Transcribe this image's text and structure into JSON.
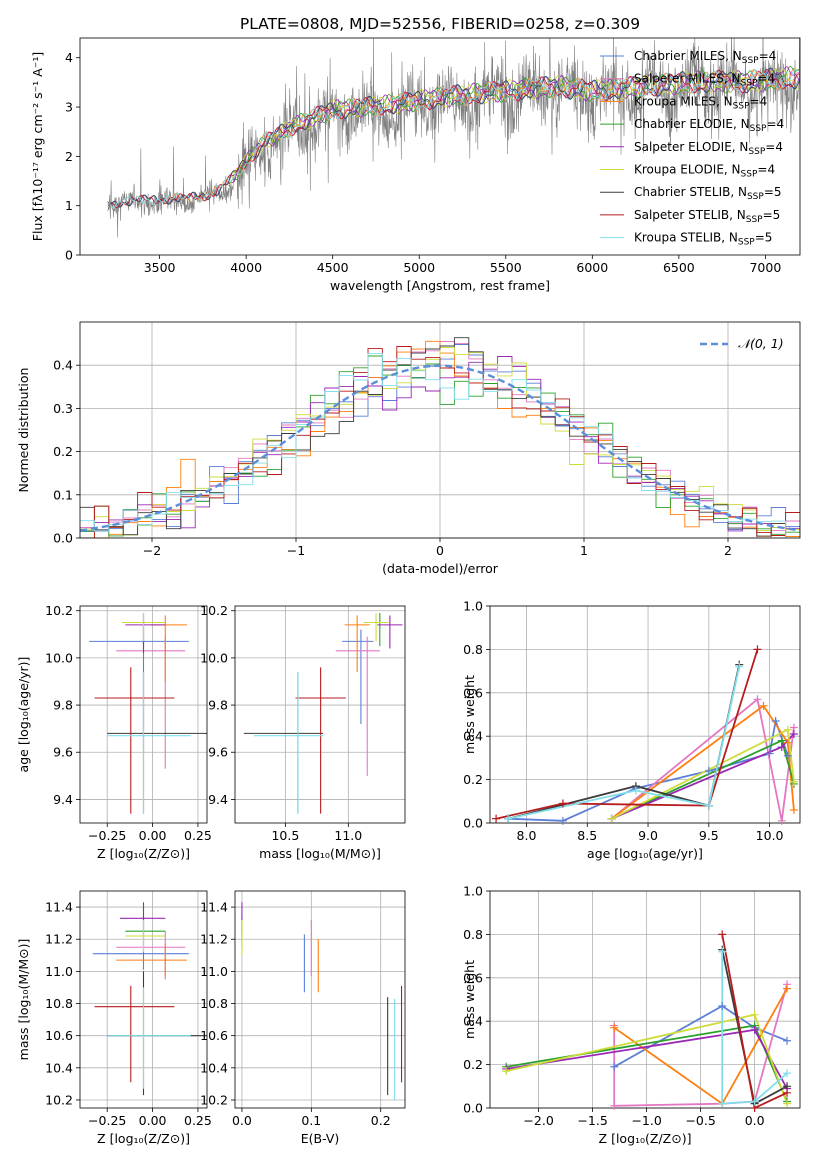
{
  "title": "PLATE=0808, MJD=52556, FIBERID=0258, z=0.309",
  "colors": {
    "Chabrier MILES": "#5b7fd9",
    "Salpeter MILES": "#e377c2",
    "Kroupa MILES": "#ff7f0e",
    "Chabrier ELODIE": "#2ca02c",
    "Salpeter ELODIE": "#9a28b5",
    "Kroupa ELODIE": "#cddc39",
    "Chabrier STELIB": "#3c3c3c",
    "Salpeter STELIB": "#b71c1c",
    "Kroupa STELIB": "#80deea",
    "normal": "#5b8fd9",
    "data": "#808080",
    "grid": "#b0b0b0"
  },
  "chart_data": [
    {
      "id": "spectrum",
      "type": "line",
      "title": "PLATE=0808, MJD=52556, FIBERID=0258, z=0.309",
      "xlabel": "wavelength [Angstrom, rest frame]",
      "ylabel": "Flux [fλ10⁻¹⁷ erg cm⁻² s⁻¹ A⁻¹]",
      "xlim": [
        3040,
        7200
      ],
      "ylim": [
        0,
        4.4
      ],
      "xticks": [
        3500,
        4000,
        4500,
        5000,
        5500,
        6000,
        6500,
        7000
      ],
      "yticks": [
        0,
        1,
        2,
        3,
        4
      ],
      "grid": false,
      "legend_position": "top-right",
      "data_range": [
        3200,
        7200
      ],
      "continuum_knots": {
        "x": [
          3200,
          3500,
          3650,
          3800,
          3900,
          4000,
          4100,
          4300,
          4500,
          4800,
          5000,
          5200,
          5500,
          5800,
          6000,
          6300,
          6600,
          6900,
          7200
        ],
        "y": [
          1.1,
          1.2,
          1.2,
          1.3,
          1.55,
          2.0,
          2.4,
          2.8,
          3.1,
          3.2,
          3.3,
          3.4,
          3.5,
          3.6,
          3.5,
          3.6,
          3.7,
          3.7,
          3.8
        ]
      },
      "series": [
        {
          "name": "Chabrier MILES, Nₛₛₚ=4",
          "label_main": "Chabrier MILES, N",
          "label_sub": "SSP",
          "label_end": "=4"
        },
        {
          "name": "Salpeter MILES, Nₛₛₚ=4",
          "label_main": "Salpeter MILES, N",
          "label_sub": "SSP",
          "label_end": "=4"
        },
        {
          "name": "Kroupa MILES, Nₛₛₚ=4",
          "label_main": "Kroupa MILES, N",
          "label_sub": "SSP",
          "label_end": "=4"
        },
        {
          "name": "Chabrier ELODIE, Nₛₛₚ=4",
          "label_main": "Chabrier ELODIE, N",
          "label_sub": "SSP",
          "label_end": "=4"
        },
        {
          "name": "Salpeter ELODIE, Nₛₛₚ=4",
          "label_main": "Salpeter ELODIE, N",
          "label_sub": "SSP",
          "label_end": "=4"
        },
        {
          "name": "Kroupa ELODIE, Nₛₛₚ=4",
          "label_main": "Kroupa ELODIE, N",
          "label_sub": "SSP",
          "label_end": "=4"
        },
        {
          "name": "Chabrier STELIB, Nₛₛₚ=5",
          "label_main": "Chabrier STELIB, N",
          "label_sub": "SSP",
          "label_end": "=5"
        },
        {
          "name": "Salpeter STELIB, Nₛₛₚ=5",
          "label_main": "Salpeter STELIB, N",
          "label_sub": "SSP",
          "label_end": "=5"
        },
        {
          "name": "Kroupa STELIB, Nₛₛₚ=5",
          "label_main": "Kroupa STELIB, N",
          "label_sub": "SSP",
          "label_end": "=5"
        }
      ]
    },
    {
      "id": "residuals",
      "type": "line",
      "xlabel": "(data-model)/error",
      "ylabel": "Normed distribution",
      "xlim": [
        -2.5,
        2.5
      ],
      "ylim": [
        0,
        0.5
      ],
      "xticks": [
        -2,
        -1,
        0,
        1,
        2
      ],
      "yticks": [
        0.0,
        0.1,
        0.2,
        0.3,
        0.4
      ],
      "grid": true,
      "legend_position": "top-right",
      "normal_label": "𝒩(0, 1)",
      "bins": [
        -2.5,
        2.5,
        50
      ]
    },
    {
      "id": "age-vs-Z",
      "type": "scatter",
      "xlabel": "Z [log₁₀(Z/Z⊙)]",
      "ylabel": "age [log₁₀(age/yr)]",
      "xlim": [
        -0.4,
        0.3
      ],
      "ylim": [
        9.3,
        10.22
      ],
      "xticks": [
        -0.25,
        0.0,
        0.25
      ],
      "yticks": [
        9.4,
        9.6,
        9.8,
        10.0,
        10.2
      ],
      "grid": true,
      "points": [
        {
          "model": "Chabrier MILES",
          "x": -0.05,
          "xerr": [
            0.3,
            0.25
          ],
          "y": 10.07,
          "yerr": [
            0.45,
            0.05
          ]
        },
        {
          "model": "Salpeter MILES",
          "x": 0.07,
          "xerr": [
            0.27,
            0.11
          ],
          "y": 10.03,
          "yerr": [
            0.5,
            0.06
          ]
        },
        {
          "model": "Kroupa MILES",
          "x": 0.07,
          "xerr": [
            0.08,
            0.12
          ],
          "y": 10.14,
          "yerr": [
            0.24,
            0.04
          ]
        },
        {
          "model": "Chabrier ELODIE",
          "x": -0.05,
          "xerr": [
            0.1,
            0.12
          ],
          "y": 10.15,
          "yerr": [
            0.1,
            0.04
          ]
        },
        {
          "model": "Salpeter ELODIE",
          "x": -0.05,
          "xerr": [
            0.1,
            0.12
          ],
          "y": 10.14,
          "yerr": [
            0.12,
            0.04
          ]
        },
        {
          "model": "Kroupa ELODIE",
          "x": -0.05,
          "xerr": [
            0.12,
            0.12
          ],
          "y": 10.15,
          "yerr": [
            0.08,
            0.04
          ]
        },
        {
          "model": "Chabrier STELIB",
          "x": -0.05,
          "xerr": [
            0.2,
            0.35
          ],
          "y": 9.68,
          "yerr": [
            0.34,
            0.26
          ]
        },
        {
          "model": "Salpeter STELIB",
          "x": -0.12,
          "xerr": [
            0.2,
            0.24
          ],
          "y": 9.83,
          "yerr": [
            0.49,
            0.13
          ]
        },
        {
          "model": "Kroupa STELIB",
          "x": -0.05,
          "xerr": [
            0.2,
            0.26
          ],
          "y": 9.67,
          "yerr": [
            0.33,
            0.27
          ]
        }
      ]
    },
    {
      "id": "age-vs-mass",
      "type": "scatter",
      "xlabel": "mass [log₁₀(M/M⊙)]",
      "ylabel": "",
      "xlim": [
        10.1,
        11.45
      ],
      "ylim": [
        9.3,
        10.22
      ],
      "xticks": [
        10.5,
        11.0
      ],
      "yticks": [
        9.4,
        9.6,
        9.8,
        10.0,
        10.2
      ],
      "grid": true,
      "points": [
        {
          "model": "Chabrier MILES",
          "x": 11.1,
          "xerr": [
            0.15,
            0.1
          ],
          "y": 10.07,
          "yerr": [
            0.35,
            0.05
          ]
        },
        {
          "model": "Salpeter MILES",
          "x": 11.15,
          "xerr": [
            0.25,
            0.1
          ],
          "y": 10.03,
          "yerr": [
            0.53,
            0.06
          ]
        },
        {
          "model": "Kroupa MILES",
          "x": 11.07,
          "xerr": [
            0.1,
            0.1
          ],
          "y": 10.14,
          "yerr": [
            0.2,
            0.04
          ]
        },
        {
          "model": "Chabrier ELODIE",
          "x": 11.25,
          "xerr": [
            0.1,
            0.05
          ],
          "y": 10.15,
          "yerr": [
            0.1,
            0.04
          ]
        },
        {
          "model": "Salpeter ELODIE",
          "x": 11.33,
          "xerr": [
            0.1,
            0.1
          ],
          "y": 10.14,
          "yerr": [
            0.1,
            0.04
          ]
        },
        {
          "model": "Kroupa ELODIE",
          "x": 11.22,
          "xerr": [
            0.1,
            0.1
          ],
          "y": 10.15,
          "yerr": [
            0.08,
            0.04
          ]
        },
        {
          "model": "Chabrier STELIB",
          "x": 10.6,
          "xerr": [
            0.43,
            0.2
          ],
          "y": 9.68,
          "yerr": [
            0.34,
            0.26
          ]
        },
        {
          "model": "Salpeter STELIB",
          "x": 10.78,
          "xerr": [
            0.2,
            0.2
          ],
          "y": 9.83,
          "yerr": [
            0.49,
            0.13
          ]
        },
        {
          "model": "Kroupa STELIB",
          "x": 10.6,
          "xerr": [
            0.35,
            0.2
          ],
          "y": 9.67,
          "yerr": [
            0.33,
            0.27
          ]
        }
      ]
    },
    {
      "id": "mass-weight-vs-age",
      "type": "line",
      "xlabel": "age [log₁₀(age/yr)]",
      "ylabel": "mass weight",
      "xlim": [
        7.7,
        10.25
      ],
      "ylim": [
        0.0,
        1.0
      ],
      "xticks": [
        8.0,
        8.5,
        9.0,
        9.5,
        10.0
      ],
      "yticks": [
        0.0,
        0.2,
        0.4,
        0.6,
        0.8,
        1.0
      ],
      "grid": true,
      "series": [
        {
          "model": "Chabrier MILES",
          "x": [
            7.85,
            8.3,
            8.9,
            9.5,
            10.0,
            10.05,
            10.15
          ],
          "y": [
            0.02,
            0.01,
            0.16,
            0.24,
            0.32,
            0.47,
            0.31
          ]
        },
        {
          "model": "Salpeter MILES",
          "x": [
            8.7,
            9.9,
            10.1,
            10.2
          ],
          "y": [
            0.02,
            0.57,
            0.01,
            0.44
          ]
        },
        {
          "model": "Kroupa MILES",
          "x": [
            8.7,
            9.95,
            10.15,
            10.2
          ],
          "y": [
            0.02,
            0.54,
            0.37,
            0.06
          ]
        },
        {
          "model": "Chabrier ELODIE",
          "x": [
            8.7,
            10.1,
            10.2
          ],
          "y": [
            0.02,
            0.38,
            0.18
          ]
        },
        {
          "model": "Salpeter ELODIE",
          "x": [
            8.7,
            10.1,
            10.2
          ],
          "y": [
            0.02,
            0.35,
            0.41
          ]
        },
        {
          "model": "Kroupa ELODIE",
          "x": [
            8.7,
            10.15,
            10.2
          ],
          "y": [
            0.02,
            0.43,
            0.19
          ]
        },
        {
          "model": "Chabrier STELIB",
          "x": [
            7.85,
            8.9,
            9.5,
            9.75
          ],
          "y": [
            0.02,
            0.17,
            0.08,
            0.73
          ]
        },
        {
          "model": "Salpeter STELIB",
          "x": [
            7.75,
            8.3,
            9.5,
            9.9
          ],
          "y": [
            0.02,
            0.09,
            0.08,
            0.8
          ]
        },
        {
          "model": "Kroupa STELIB",
          "x": [
            7.85,
            8.9,
            9.5,
            9.75
          ],
          "y": [
            0.02,
            0.15,
            0.08,
            0.72
          ]
        }
      ]
    },
    {
      "id": "mass-vs-Z",
      "type": "scatter",
      "xlabel": "Z [log₁₀(Z/Z⊙)]",
      "ylabel": "mass [log₁₀(M/M⊙)]",
      "xlim": [
        -0.4,
        0.3
      ],
      "ylim": [
        10.15,
        11.5
      ],
      "xticks": [
        -0.25,
        0.0,
        0.25
      ],
      "yticks": [
        10.2,
        10.4,
        10.6,
        10.8,
        11.0,
        11.2,
        11.4
      ],
      "grid": true,
      "points": [
        {
          "model": "Chabrier MILES",
          "x": -0.05,
          "xerr": [
            0.28,
            0.25
          ],
          "y": 11.11,
          "yerr": [
            0.1,
            0.1
          ]
        },
        {
          "model": "Salpeter MILES",
          "x": 0.07,
          "xerr": [
            0.27,
            0.11
          ],
          "y": 11.15,
          "yerr": [
            0.2,
            0.1
          ]
        },
        {
          "model": "Kroupa MILES",
          "x": 0.07,
          "xerr": [
            0.27,
            0.12
          ],
          "y": 11.07,
          "yerr": [
            0.1,
            0.1
          ]
        },
        {
          "model": "Chabrier ELODIE",
          "x": -0.05,
          "xerr": [
            0.1,
            0.12
          ],
          "y": 11.25,
          "yerr": [
            0.1,
            0.1
          ]
        },
        {
          "model": "Salpeter ELODIE",
          "x": -0.05,
          "xerr": [
            0.13,
            0.12
          ],
          "y": 11.33,
          "yerr": [
            0.1,
            0.1
          ]
        },
        {
          "model": "Kroupa ELODIE",
          "x": -0.05,
          "xerr": [
            0.1,
            0.12
          ],
          "y": 11.22,
          "yerr": [
            0.1,
            0.1
          ]
        },
        {
          "model": "Chabrier STELIB",
          "x": -0.05,
          "xerr": [
            0.2,
            0.35
          ],
          "y": 10.6,
          "yerr": [
            0.37,
            0.4
          ]
        },
        {
          "model": "Salpeter STELIB",
          "x": -0.12,
          "xerr": [
            0.2,
            0.24
          ],
          "y": 10.78,
          "yerr": [
            0.47,
            0.13
          ]
        },
        {
          "model": "Kroupa STELIB",
          "x": -0.05,
          "xerr": [
            0.2,
            0.26
          ],
          "y": 10.6,
          "yerr": [
            0.33,
            0.3
          ]
        }
      ]
    },
    {
      "id": "mass-vs-EBV",
      "type": "scatter",
      "xlabel": "E(B-V)",
      "ylabel": "",
      "xlim": [
        -0.01,
        0.235
      ],
      "ylim": [
        10.15,
        11.5
      ],
      "xticks": [
        0.0,
        0.1,
        0.2
      ],
      "yticks": [
        10.2,
        10.4,
        10.6,
        10.8,
        11.0,
        11.2,
        11.4
      ],
      "grid": true,
      "points": [
        {
          "model": "Chabrier MILES",
          "x": 0.09,
          "y": 11.05,
          "yerr": [
            0.18,
            0.18
          ]
        },
        {
          "model": "Salpeter MILES",
          "x": 0.1,
          "y": 11.15,
          "yerr": [
            0.18,
            0.17
          ]
        },
        {
          "model": "Kroupa MILES",
          "x": 0.11,
          "y": 11.07,
          "yerr": [
            0.2,
            0.13
          ]
        },
        {
          "model": "Chabrier ELODIE",
          "x": 0.0,
          "y": 11.25,
          "yerr": [
            0.1,
            0.1
          ]
        },
        {
          "model": "Salpeter ELODIE",
          "x": 0.0,
          "y": 11.33,
          "yerr": [
            0.1,
            0.1
          ]
        },
        {
          "model": "Kroupa ELODIE",
          "x": 0.0,
          "y": 11.22,
          "yerr": [
            0.12,
            0.1
          ]
        },
        {
          "model": "Chabrier STELIB",
          "x": 0.21,
          "y": 10.6,
          "yerr": [
            0.37,
            0.24
          ]
        },
        {
          "model": "Salpeter STELIB",
          "x": 0.23,
          "y": 10.78,
          "yerr": [
            0.47,
            0.13
          ]
        },
        {
          "model": "Kroupa STELIB",
          "x": 0.22,
          "y": 10.6,
          "yerr": [
            0.4,
            0.23
          ]
        }
      ]
    },
    {
      "id": "mass-weight-vs-Z",
      "type": "line",
      "xlabel": "Z [log₁₀(Z/Z⊙)]",
      "ylabel": "mass weight",
      "xlim": [
        -2.45,
        0.42
      ],
      "ylim": [
        0.0,
        1.0
      ],
      "xticks": [
        -2.0,
        -1.5,
        -1.0,
        -0.5,
        0.0
      ],
      "yticks": [
        0.0,
        0.2,
        0.4,
        0.6,
        0.8,
        1.0
      ],
      "grid": true,
      "series": [
        {
          "model": "Chabrier MILES",
          "x": [
            -1.3,
            -0.3,
            0.0,
            0.3
          ],
          "y": [
            0.19,
            0.47,
            0.37,
            0.31
          ]
        },
        {
          "model": "Salpeter MILES",
          "x": [
            -1.3,
            -1.3,
            -0.3,
            0.0,
            0.3
          ],
          "y": [
            0.38,
            0.01,
            0.02,
            0.03,
            0.57
          ]
        },
        {
          "model": "Kroupa MILES",
          "x": [
            -1.3,
            -0.3,
            0.3
          ],
          "y": [
            0.37,
            0.02,
            0.55
          ]
        },
        {
          "model": "Chabrier ELODIE",
          "x": [
            -2.3,
            0.0,
            0.3
          ],
          "y": [
            0.19,
            0.38,
            0.03
          ]
        },
        {
          "model": "Salpeter ELODIE",
          "x": [
            -2.3,
            0.0,
            0.3
          ],
          "y": [
            0.18,
            0.36,
            0.09
          ]
        },
        {
          "model": "Kroupa ELODIE",
          "x": [
            -2.3,
            0.0,
            0.3
          ],
          "y": [
            0.17,
            0.43,
            0.02
          ]
        },
        {
          "model": "Chabrier STELIB",
          "x": [
            -0.3,
            0.0,
            0.3
          ],
          "y": [
            0.73,
            0.02,
            0.1
          ]
        },
        {
          "model": "Salpeter STELIB",
          "x": [
            -0.3,
            0.0,
            0.3
          ],
          "y": [
            0.8,
            0.0,
            0.07
          ]
        },
        {
          "model": "Kroupa STELIB",
          "x": [
            -0.3,
            -0.3,
            0.0,
            0.3
          ],
          "y": [
            0.72,
            0.02,
            0.03,
            0.16
          ]
        }
      ]
    }
  ]
}
